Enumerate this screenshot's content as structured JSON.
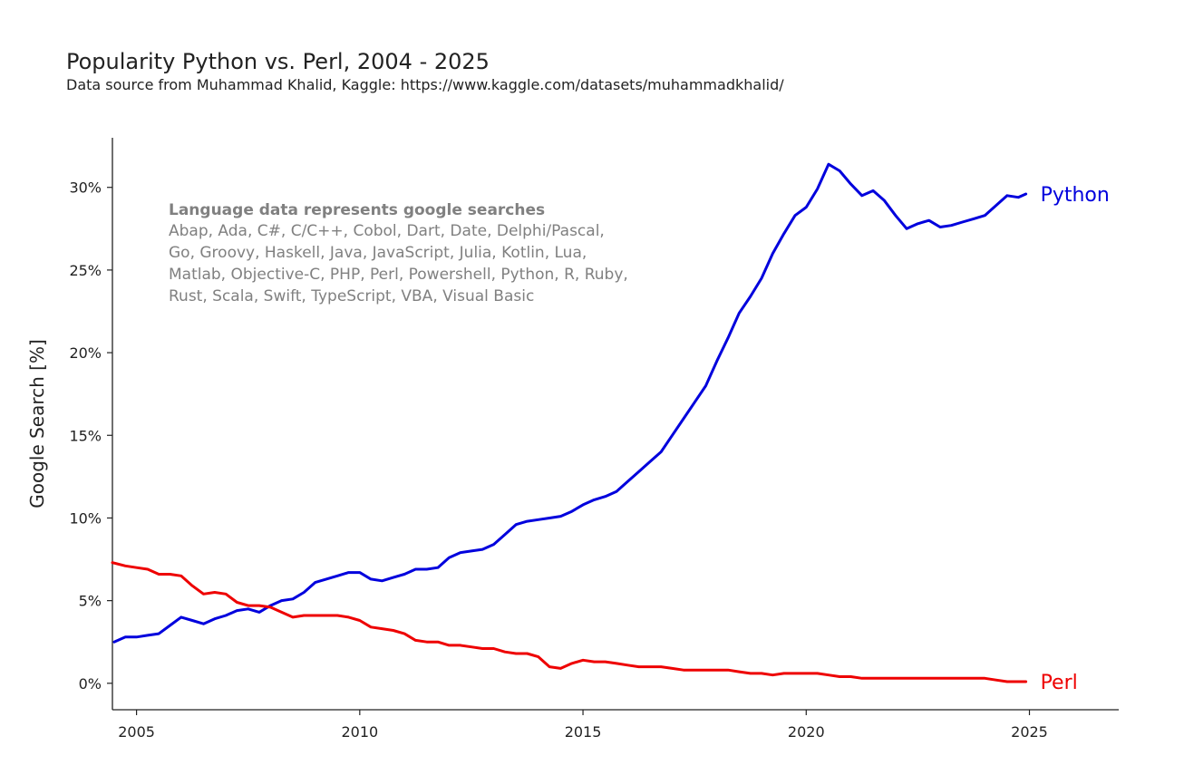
{
  "chart_data": {
    "type": "line",
    "title": "Popularity Python vs. Perl, 2004 - 2025",
    "subtitle": "Data source from Muhammad Khalid, Kaggle: https://www.kaggle.com/datasets/muhammadkhalid/",
    "ylabel": "Google Search [%]",
    "xlabel": "",
    "xlim": [
      2004.46,
      2027.0
    ],
    "ylim": [
      -1.6,
      33.0
    ],
    "xticks": [
      2005,
      2010,
      2015,
      2020,
      2025
    ],
    "xtick_labels": [
      "2005",
      "2010",
      "2015",
      "2020",
      "2025"
    ],
    "yticks": [
      0,
      5,
      10,
      15,
      20,
      25,
      30
    ],
    "ytick_labels": [
      "0%",
      "5%",
      "10%",
      "15%",
      "20%",
      "25%",
      "30%"
    ],
    "grid": false,
    "legend": "line-end labels",
    "annotation": {
      "heading": "Language data represents google searches",
      "lines": [
        "Abap, Ada, C#, C/C++, Cobol, Dart, Date, Delphi/Pascal,",
        "Go, Groovy, Haskell, Java, JavaScript, Julia, Kotlin, Lua,",
        "Matlab, Objective-C, PHP, Perl, Powershell, Python, R, Ruby,",
        "Rust, Scala, Swift, TypeScript, VBA, Visual Basic"
      ]
    },
    "series": [
      {
        "name": "Python",
        "color": "#0000dd",
        "x": [
          2004.5,
          2004.75,
          2005.0,
          2005.25,
          2005.5,
          2005.75,
          2006.0,
          2006.25,
          2006.5,
          2006.75,
          2007.0,
          2007.25,
          2007.5,
          2007.75,
          2008.0,
          2008.25,
          2008.5,
          2008.75,
          2009.0,
          2009.25,
          2009.5,
          2009.75,
          2010.0,
          2010.25,
          2010.5,
          2010.75,
          2011.0,
          2011.25,
          2011.5,
          2011.75,
          2012.0,
          2012.25,
          2012.5,
          2012.75,
          2013.0,
          2013.25,
          2013.5,
          2013.75,
          2014.0,
          2014.25,
          2014.5,
          2014.75,
          2015.0,
          2015.25,
          2015.5,
          2015.75,
          2016.0,
          2016.25,
          2016.5,
          2016.75,
          2017.0,
          2017.25,
          2017.5,
          2017.75,
          2018.0,
          2018.25,
          2018.5,
          2018.75,
          2019.0,
          2019.25,
          2019.5,
          2019.75,
          2020.0,
          2020.25,
          2020.5,
          2020.75,
          2021.0,
          2021.25,
          2021.5,
          2021.75,
          2022.0,
          2022.25,
          2022.5,
          2022.75,
          2023.0,
          2023.25,
          2023.5,
          2023.75,
          2024.0,
          2024.25,
          2024.5,
          2024.75,
          2024.92
        ],
        "values": [
          2.5,
          2.8,
          2.8,
          2.9,
          3.0,
          3.5,
          4.0,
          3.8,
          3.6,
          3.9,
          4.1,
          4.4,
          4.5,
          4.3,
          4.7,
          5.0,
          5.1,
          5.5,
          6.1,
          6.3,
          6.5,
          6.7,
          6.7,
          6.3,
          6.2,
          6.4,
          6.6,
          6.9,
          6.9,
          7.0,
          7.6,
          7.9,
          8.0,
          8.1,
          8.4,
          9.0,
          9.6,
          9.8,
          9.9,
          10.0,
          10.1,
          10.4,
          10.8,
          11.1,
          11.3,
          11.6,
          12.2,
          12.8,
          13.4,
          14.0,
          15.0,
          16.0,
          17.0,
          18.0,
          19.5,
          20.9,
          22.4,
          23.4,
          24.5,
          26.0,
          27.2,
          28.3,
          28.8,
          29.9,
          31.4,
          31.0,
          30.2,
          29.5,
          29.8,
          29.2,
          28.3,
          27.5,
          27.8,
          28.0,
          27.6,
          27.7,
          27.9,
          28.1,
          28.3,
          28.9,
          29.5,
          29.4,
          29.6
        ]
      },
      {
        "name": "Perl",
        "color": "#ee0000",
        "x": [
          2004.46,
          2004.75,
          2005.0,
          2005.25,
          2005.5,
          2005.75,
          2006.0,
          2006.25,
          2006.5,
          2006.75,
          2007.0,
          2007.25,
          2007.5,
          2007.75,
          2008.0,
          2008.25,
          2008.5,
          2008.75,
          2009.0,
          2009.25,
          2009.5,
          2009.75,
          2010.0,
          2010.25,
          2010.5,
          2010.75,
          2011.0,
          2011.25,
          2011.5,
          2011.75,
          2012.0,
          2012.25,
          2012.5,
          2012.75,
          2013.0,
          2013.25,
          2013.5,
          2013.75,
          2014.0,
          2014.25,
          2014.5,
          2014.75,
          2015.0,
          2015.25,
          2015.5,
          2015.75,
          2016.0,
          2016.25,
          2016.5,
          2016.75,
          2017.0,
          2017.25,
          2017.5,
          2017.75,
          2018.0,
          2018.25,
          2018.5,
          2018.75,
          2019.0,
          2019.25,
          2019.5,
          2019.75,
          2020.0,
          2020.25,
          2020.5,
          2020.75,
          2021.0,
          2021.25,
          2021.5,
          2021.75,
          2022.0,
          2022.25,
          2022.5,
          2022.75,
          2023.0,
          2023.25,
          2023.5,
          2023.75,
          2024.0,
          2024.25,
          2024.5,
          2024.75,
          2024.92
        ],
        "values": [
          7.3,
          7.1,
          7.0,
          6.9,
          6.6,
          6.6,
          6.5,
          5.9,
          5.4,
          5.5,
          5.4,
          4.9,
          4.7,
          4.7,
          4.6,
          4.3,
          4.0,
          4.1,
          4.1,
          4.1,
          4.1,
          4.0,
          3.8,
          3.4,
          3.3,
          3.2,
          3.0,
          2.6,
          2.5,
          2.5,
          2.3,
          2.3,
          2.2,
          2.1,
          2.1,
          1.9,
          1.8,
          1.8,
          1.6,
          1.0,
          0.9,
          1.2,
          1.4,
          1.3,
          1.3,
          1.2,
          1.1,
          1.0,
          1.0,
          1.0,
          0.9,
          0.8,
          0.8,
          0.8,
          0.8,
          0.8,
          0.7,
          0.6,
          0.6,
          0.5,
          0.6,
          0.6,
          0.6,
          0.6,
          0.5,
          0.4,
          0.4,
          0.3,
          0.3,
          0.3,
          0.3,
          0.3,
          0.3,
          0.3,
          0.3,
          0.3,
          0.3,
          0.3,
          0.3,
          0.2,
          0.1,
          0.1,
          0.1
        ]
      }
    ]
  }
}
